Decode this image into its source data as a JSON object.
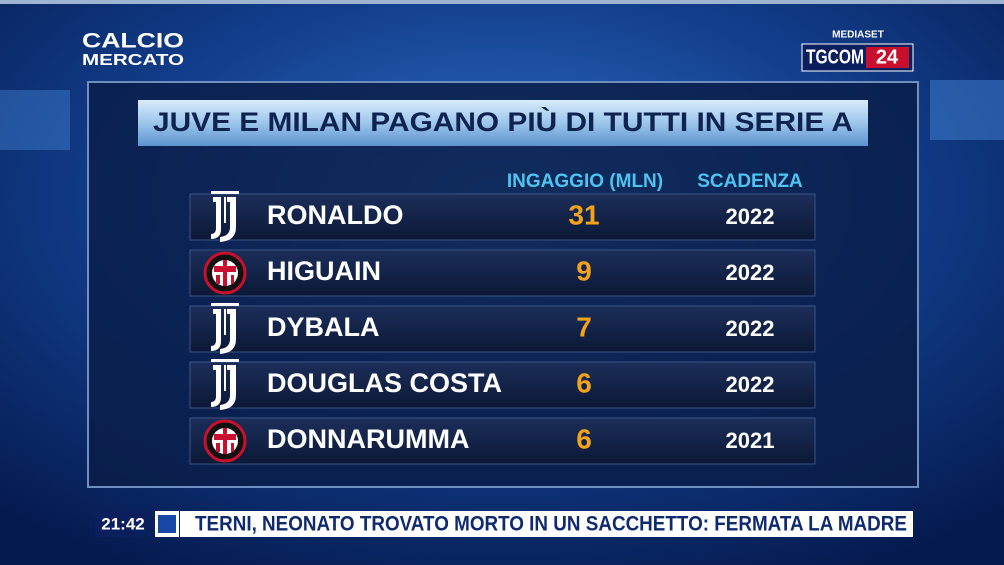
{
  "logo": {
    "line1": "CALCIO",
    "line2": "MERCATO"
  },
  "broadcaster": {
    "network": "MEDIASET",
    "channel": "TGCOM",
    "channel_number": "24"
  },
  "table": {
    "title": "JUVE E MILAN PAGANO PIÙ DI TUTTI IN SERIE A",
    "headers": [
      "INGAGGIO (MLN)",
      "SCADENZA"
    ],
    "rows": [
      [
        "RONALDO",
        31,
        2022
      ],
      [
        "HIGUAIN",
        9,
        2022
      ],
      [
        "DYBALA",
        7,
        2022
      ],
      [
        "DOUGLAS COSTA",
        6,
        2022
      ],
      [
        "DONNARUMMA",
        6,
        2021
      ]
    ]
  },
  "ticker": {
    "time": "21:42",
    "headline": "TERNI, NEONATO TROVATO MORTO IN UN SACCHETTO: FERMATA LA MADRE"
  }
}
